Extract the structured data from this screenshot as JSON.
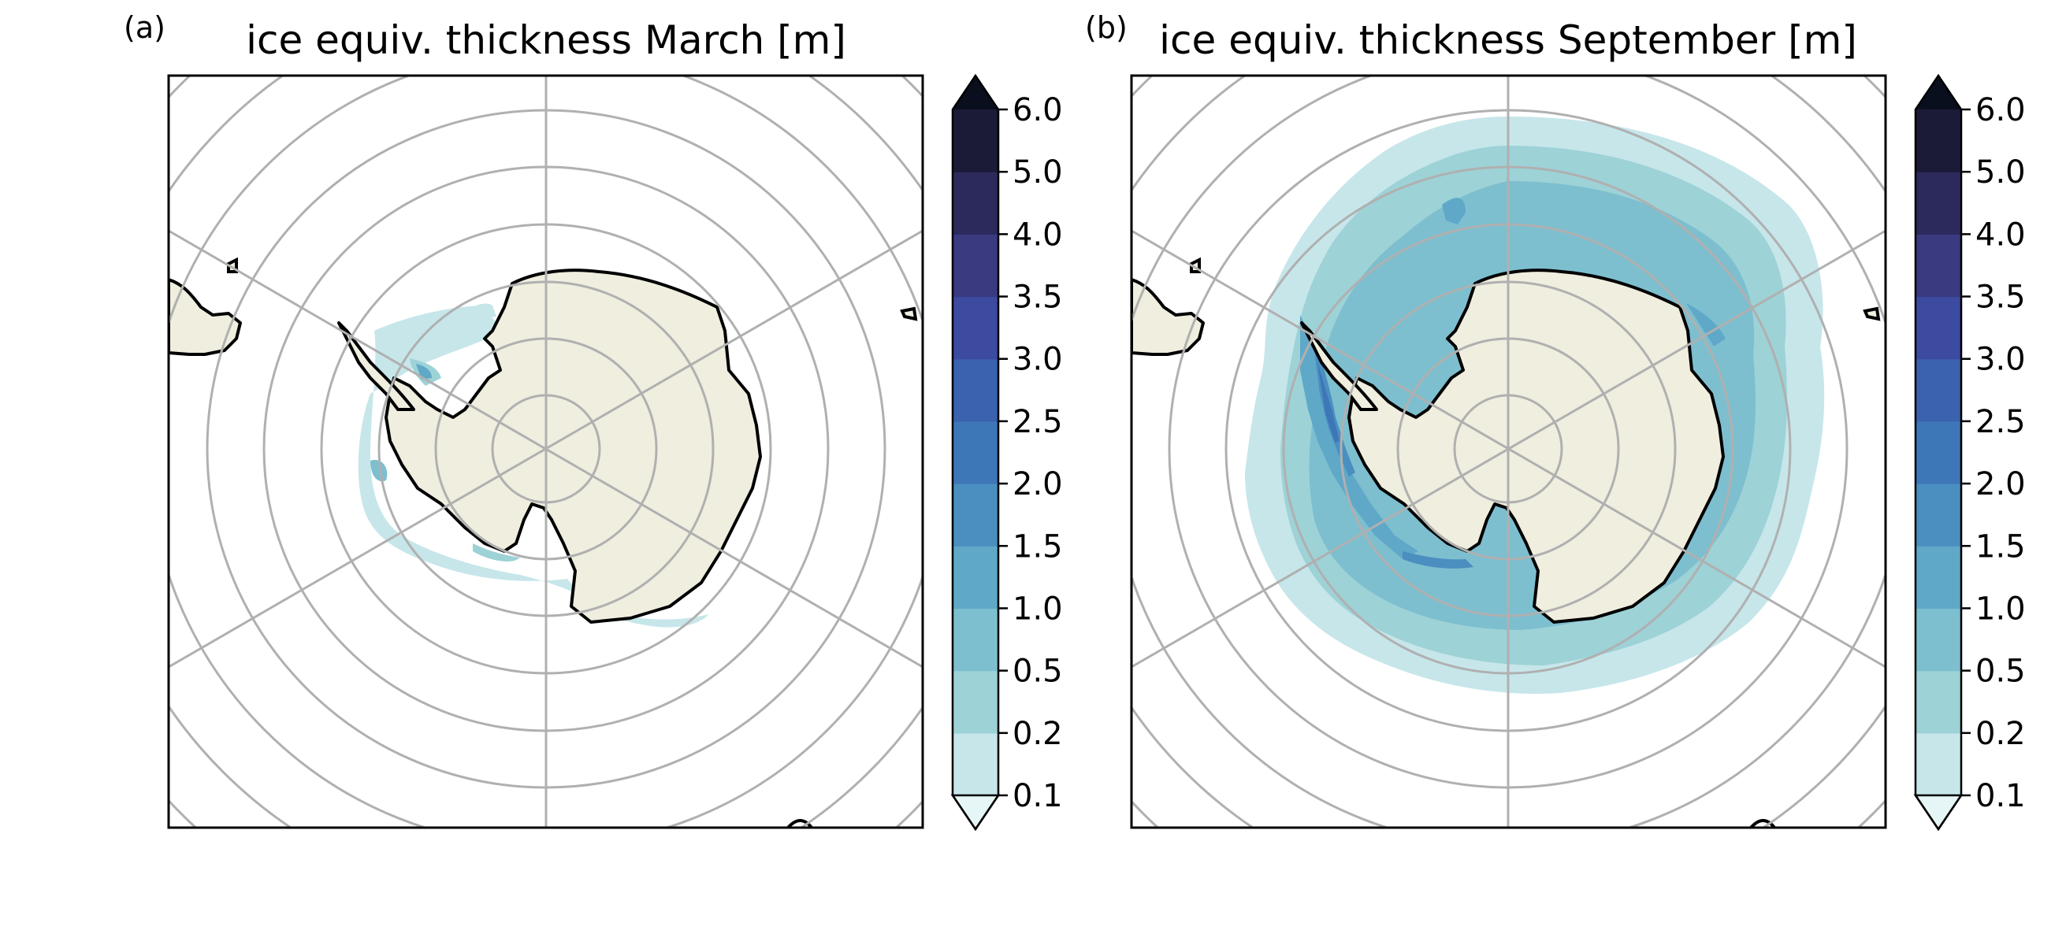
{
  "chart_data": [
    {
      "type": "heatmap",
      "panel_label": "(a)",
      "title": "ice equiv. thickness March [m]",
      "projection": "south polar stereographic",
      "grid": true,
      "colorbar": {
        "levels": [
          "0.1",
          "0.2",
          "0.5",
          "1.0",
          "1.5",
          "2.0",
          "2.5",
          "3.0",
          "3.5",
          "4.0",
          "5.0",
          "6.0"
        ],
        "extend": "both"
      },
      "ice_extent": "thin ice (mostly 0.1–0.5 m) confined near the coast, mainly Weddell Sea and along the Antarctic Peninsula; small patches up to ~1.5 m"
    },
    {
      "type": "heatmap",
      "panel_label": "(b)",
      "title": "ice equiv. thickness September [m]",
      "projection": "south polar stereographic",
      "grid": true,
      "colorbar": {
        "levels": [
          "0.1",
          "0.2",
          "0.5",
          "1.0",
          "1.5",
          "2.0",
          "2.5",
          "3.0",
          "3.5",
          "4.0",
          "5.0",
          "6.0"
        ],
        "extend": "both"
      },
      "ice_extent": "broad ring around the continent, 0.1–1.0 m offshore, thicker (1.5–2.5 m) along the coast, notably the Weddell Sea and western Antarctic Peninsula"
    }
  ],
  "colors": {
    "bins": [
      "#c6e6ea",
      "#9dd2d7",
      "#7dbfcf",
      "#5fa8c8",
      "#4b8fc0",
      "#3e77b8",
      "#3a62ae",
      "#3c4aa0",
      "#393a80",
      "#2c2a5c",
      "#1b1b38",
      "#0a0f1e"
    ],
    "under": "#e6f6f6",
    "over": "#0a0f1e",
    "land": "#efeedf",
    "coastline": "#000000",
    "gridline": "#b0b0b0"
  }
}
